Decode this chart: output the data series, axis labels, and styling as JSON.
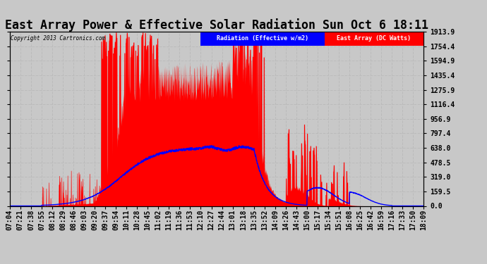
{
  "title": "East Array Power & Effective Solar Radiation Sun Oct 6 18:11",
  "copyright": "Copyright 2013 Cartronics.com",
  "legend_radiation": "Radiation (Effective w/m2)",
  "legend_array": "East Array (DC Watts)",
  "ymin": 0.0,
  "ymax": 1913.9,
  "yticks": [
    0.0,
    159.5,
    319.0,
    478.5,
    638.0,
    797.4,
    956.9,
    1116.4,
    1275.9,
    1435.4,
    1594.9,
    1754.4,
    1913.9
  ],
  "bg_color": "#c8c8c8",
  "plot_bg_color": "#c8c8c8",
  "grid_color": "#aaaaaa",
  "red_fill_color": "#ff0000",
  "blue_line_color": "#0000ff",
  "title_fontsize": 12,
  "tick_fontsize": 7,
  "xtick_labels": [
    "07:04",
    "07:21",
    "07:38",
    "07:55",
    "08:12",
    "08:29",
    "08:46",
    "09:03",
    "09:20",
    "09:37",
    "09:54",
    "10:11",
    "10:28",
    "10:45",
    "11:02",
    "11:19",
    "11:36",
    "11:53",
    "12:10",
    "12:27",
    "12:44",
    "13:01",
    "13:18",
    "13:35",
    "13:52",
    "14:09",
    "14:26",
    "14:43",
    "15:00",
    "15:17",
    "15:34",
    "15:51",
    "16:08",
    "16:25",
    "16:42",
    "16:59",
    "17:16",
    "17:33",
    "17:50",
    "18:09"
  ],
  "n_points": 2000
}
